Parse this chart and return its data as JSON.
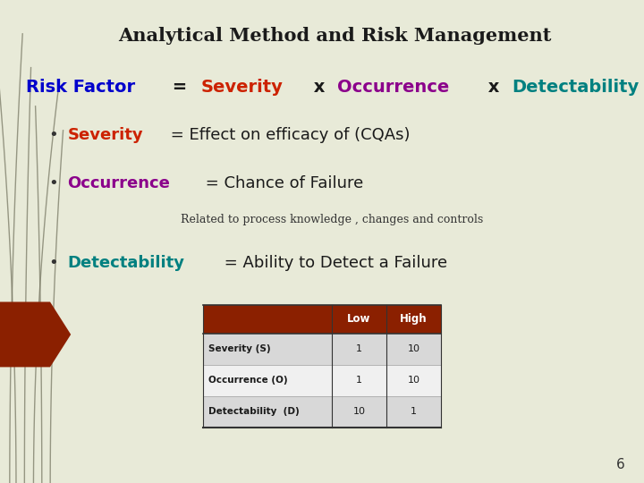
{
  "title": "Analytical Method and Risk Management",
  "title_color": "#1a1a1a",
  "title_fontsize": 15,
  "background_color": "#e8ead8",
  "slide_number": "6",
  "line1_parts": [
    {
      "text": "Risk Factor",
      "color": "#0000cc",
      "bold": true,
      "italic": false
    },
    {
      "text": " = ",
      "color": "#1a1a1a",
      "bold": true,
      "italic": false
    },
    {
      "text": "Severity",
      "color": "#cc2200",
      "bold": true,
      "italic": false
    },
    {
      "text": " x ",
      "color": "#1a1a1a",
      "bold": true,
      "italic": false
    },
    {
      "text": "Occurrence",
      "color": "#8b008b",
      "bold": true,
      "italic": false
    },
    {
      "text": " x ",
      "color": "#1a1a1a",
      "bold": true,
      "italic": false
    },
    {
      "text": "Detectability",
      "color": "#008080",
      "bold": true,
      "italic": false
    }
  ],
  "bullet1_parts": [
    {
      "text": "Severity",
      "color": "#cc2200",
      "bold": true,
      "italic": false
    },
    {
      "text": " = Effect on efficacy of (CQAs)",
      "color": "#1a1a1a",
      "bold": false,
      "italic": false
    }
  ],
  "bullet2_parts": [
    {
      "text": "Occurrence",
      "color": "#8b008b",
      "bold": true,
      "italic": false
    },
    {
      "text": " = Chance of Failure",
      "color": "#1a1a1a",
      "bold": false,
      "italic": false
    }
  ],
  "sub_bullet": "Related to process knowledge , changes and controls",
  "bullet3_parts": [
    {
      "text": "Detectability",
      "color": "#008080",
      "bold": true,
      "italic": false
    },
    {
      "text": " = Ability to Detect a Failure",
      "color": "#1a1a1a",
      "bold": false,
      "italic": false
    }
  ],
  "table_header_bg": "#8b2000",
  "table_header_fg": "#ffffff",
  "table_row_bg1": "#d8d8d8",
  "table_row_bg2": "#f0f0f0",
  "arrow_color": "#8b2000",
  "grass_color": "#7a7a66"
}
